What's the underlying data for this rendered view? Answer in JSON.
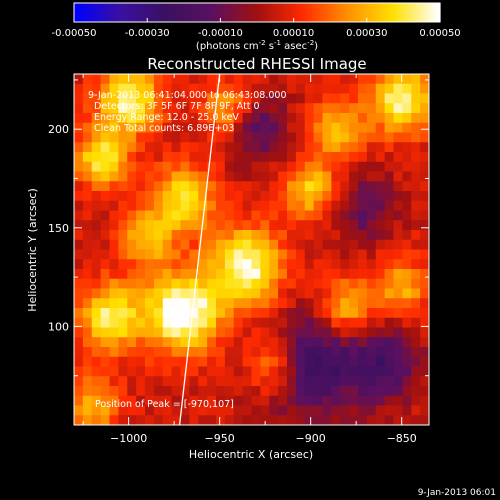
{
  "colorbar": {
    "tick_labels": [
      "-0.00050",
      "-0.00030",
      "-0.00010",
      "0.00010",
      "0.00030",
      "0.00050"
    ],
    "tick_values": [
      -0.0005,
      -0.0003,
      -0.0001,
      0.0001,
      0.0003,
      0.0005
    ],
    "range": [
      -0.0005,
      0.0005
    ],
    "unit_main": "(photons cm",
    "unit_exp1": "-2",
    "unit_s": " s",
    "unit_exp2": "-1",
    "unit_asec": " asec",
    "unit_exp3": "-2",
    "unit_close": ")",
    "colors": [
      "#0000ff",
      "#3a10a0",
      "#3a1060",
      "#5a1060",
      "#a01010",
      "#ff2a00",
      "#ff9000",
      "#ffe000",
      "#ffffff"
    ]
  },
  "chart_data": {
    "type": "heatmap",
    "title": "Reconstructed RHESSI Image",
    "xlabel": "Heliocentric X (arcsec)",
    "ylabel": "Heliocentric Y (arcsec)",
    "xlim": [
      -1030,
      -835
    ],
    "ylim": [
      50,
      228
    ],
    "xticks": [
      -1000,
      -950,
      -900,
      -850
    ],
    "yticks": [
      100,
      150,
      200
    ],
    "grid_cols": 40,
    "grid_rows": 36,
    "annotations": [
      "9-Jan-2013 06:41:04.000 to 06:43:08.000",
      "Detectors: 3F 5F 6F 7F 8F 9F, Att 0",
      "Energy Range: 12.0 - 25.0 keV",
      "Clean    Total counts: 6.89E+03"
    ],
    "peak_label": "Position of Peak = [-970,107]",
    "peak": [
      -970,
      107
    ],
    "limb_line": [
      [
        -972,
        50
      ],
      [
        -950,
        228
      ]
    ],
    "hot_spots": [
      {
        "x": -970,
        "y": 107,
        "amp": 1.0,
        "w": 14
      },
      {
        "x": -1010,
        "y": 105,
        "amp": 0.75,
        "w": 12
      },
      {
        "x": -935,
        "y": 130,
        "amp": 0.85,
        "w": 14
      },
      {
        "x": -1000,
        "y": 215,
        "amp": 0.8,
        "w": 12
      },
      {
        "x": -970,
        "y": 165,
        "amp": 0.65,
        "w": 12
      },
      {
        "x": -850,
        "y": 215,
        "amp": 0.8,
        "w": 12
      },
      {
        "x": -885,
        "y": 200,
        "amp": 0.55,
        "w": 10
      },
      {
        "x": -1015,
        "y": 185,
        "amp": 0.7,
        "w": 10
      },
      {
        "x": -900,
        "y": 170,
        "amp": 0.6,
        "w": 10
      },
      {
        "x": -1020,
        "y": 60,
        "amp": 0.5,
        "w": 10
      },
      {
        "x": -880,
        "y": 110,
        "amp": 0.55,
        "w": 10
      },
      {
        "x": -945,
        "y": 210,
        "amp": 0.5,
        "w": 10
      },
      {
        "x": -990,
        "y": 145,
        "amp": 0.55,
        "w": 10
      },
      {
        "x": -850,
        "y": 120,
        "amp": 0.5,
        "w": 10
      },
      {
        "x": -920,
        "y": 80,
        "amp": 0.5,
        "w": 10
      }
    ],
    "cold_spots": [
      {
        "x": -900,
        "y": 80,
        "amp": -0.6,
        "w": 18
      },
      {
        "x": -860,
        "y": 80,
        "amp": -0.5,
        "w": 14
      },
      {
        "x": -930,
        "y": 200,
        "amp": -0.45,
        "w": 12
      },
      {
        "x": -870,
        "y": 160,
        "amp": -0.35,
        "w": 12
      }
    ]
  },
  "footer": {
    "timestamp": "9-Jan-2013 06:01"
  }
}
